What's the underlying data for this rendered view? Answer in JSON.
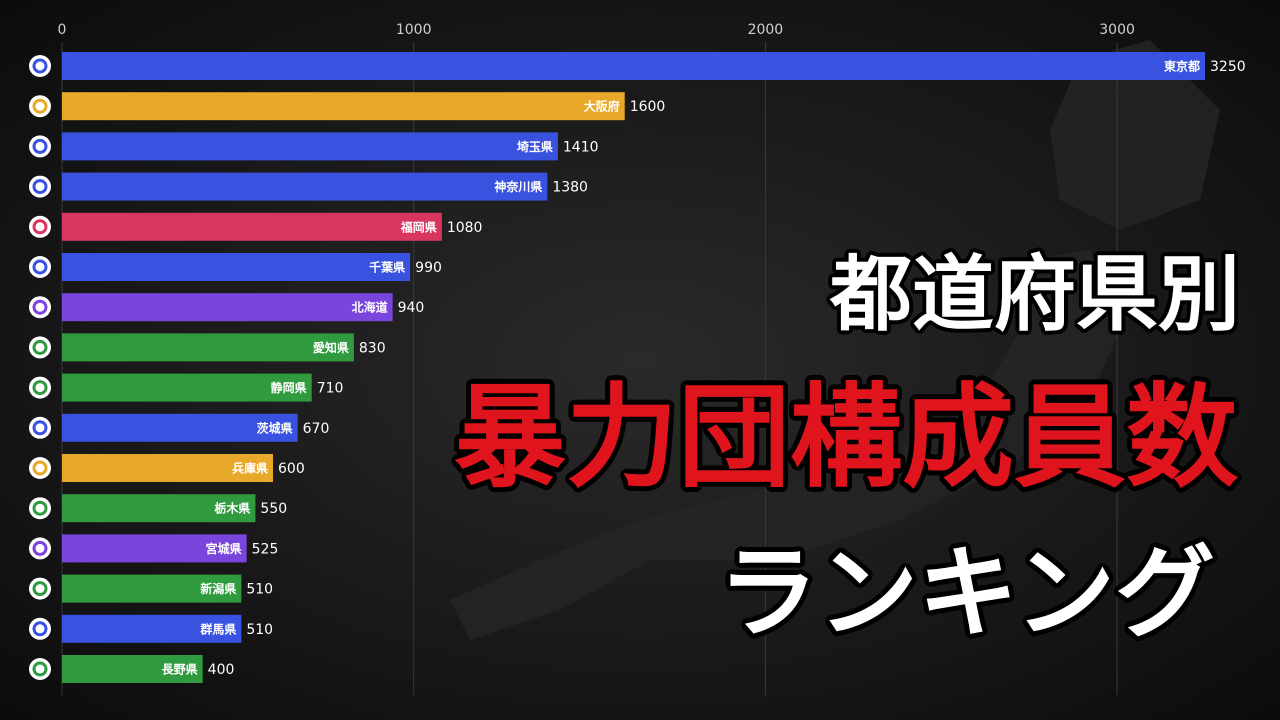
{
  "chart_data": {
    "type": "bar",
    "orientation": "horizontal",
    "title_lines": [
      "都道府県別",
      "暴力団構成員数",
      "ランキング"
    ],
    "categories": [
      "東京都",
      "大阪府",
      "埼玉県",
      "神奈川県",
      "福岡県",
      "千葉県",
      "北海道",
      "愛知県",
      "静岡県",
      "茨城県",
      "兵庫県",
      "栃木県",
      "宮城県",
      "新潟県",
      "群馬県",
      "長野県"
    ],
    "values": [
      3250,
      1600,
      1410,
      1380,
      1080,
      990,
      940,
      830,
      710,
      670,
      600,
      550,
      525,
      510,
      510,
      400
    ],
    "colors": [
      "#3a52e0",
      "#e8a82a",
      "#3a52e0",
      "#3a52e0",
      "#d8365e",
      "#3a52e0",
      "#7a45dc",
      "#2f9a3e",
      "#2f9a3e",
      "#3a52e0",
      "#e8a82a",
      "#2f9a3e",
      "#7a45dc",
      "#2f9a3e",
      "#3a52e0",
      "#2f9a3e"
    ],
    "xlim": [
      0,
      3250
    ],
    "xticks": [
      0,
      1000,
      2000,
      3000
    ],
    "grid": true
  }
}
